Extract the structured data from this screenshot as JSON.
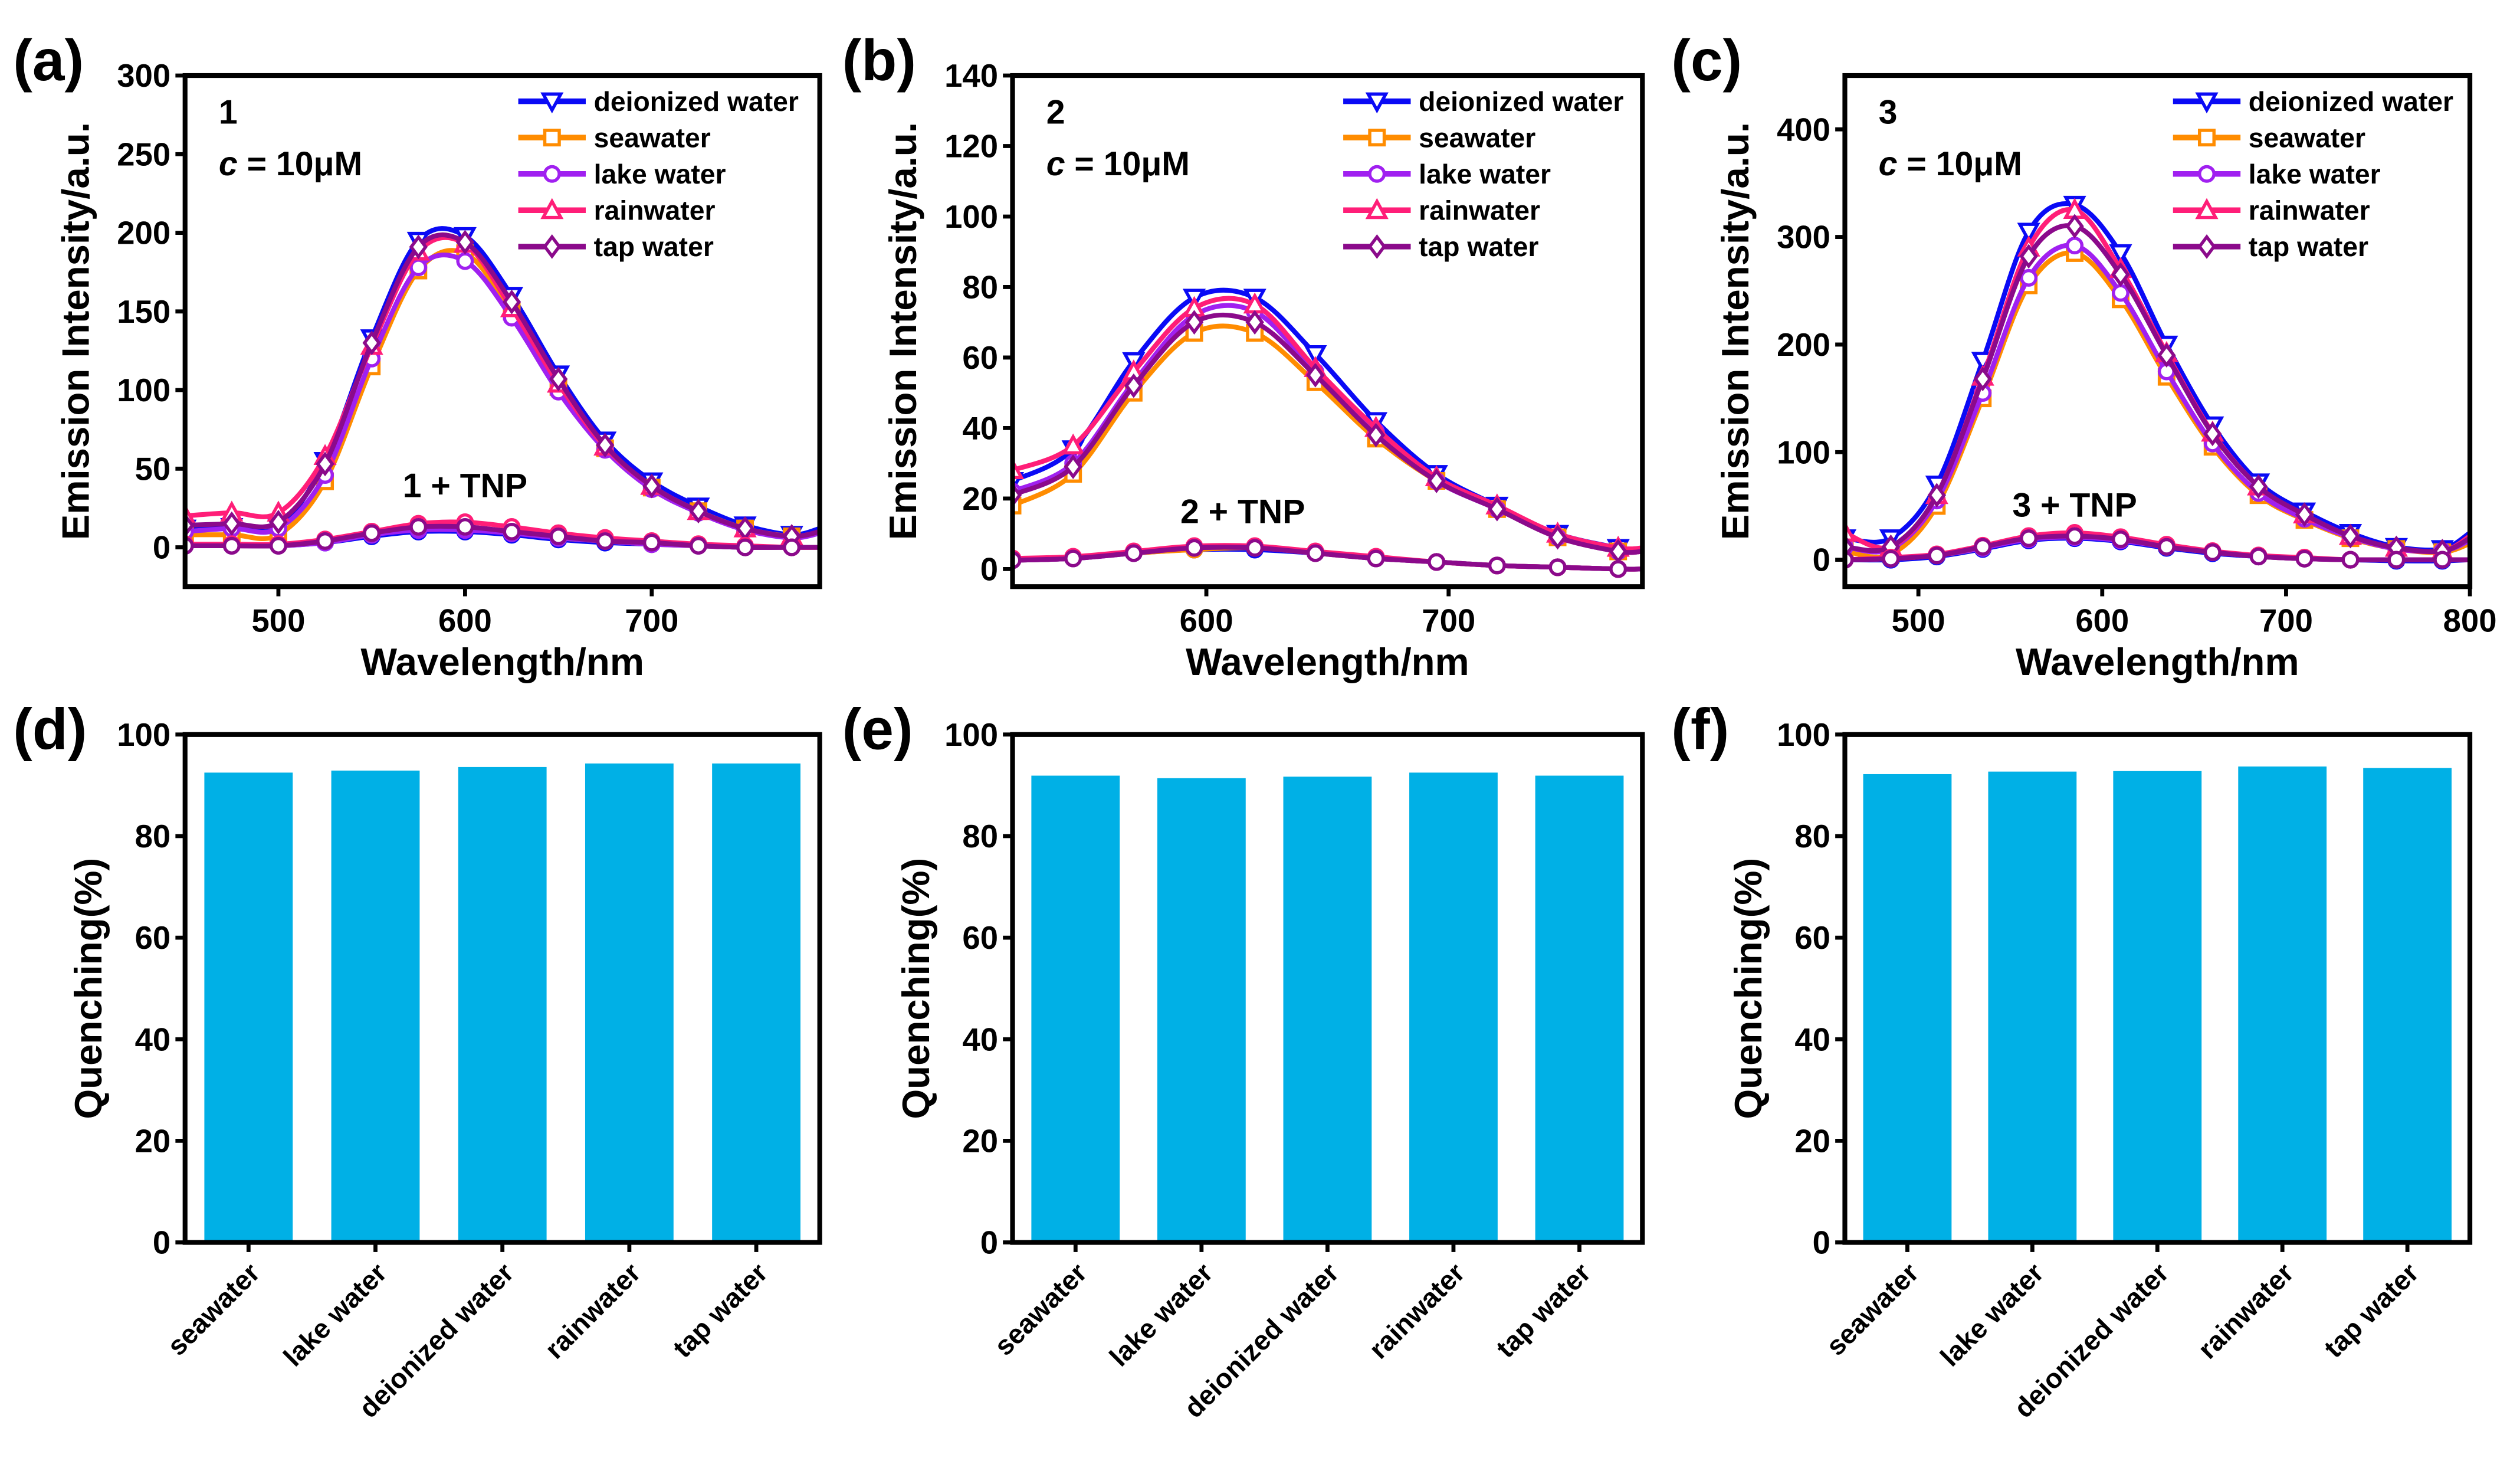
{
  "panel_labels": [
    "(a)",
    "(b)",
    "(c)",
    "(d)",
    "(e)",
    "(f)"
  ],
  "colors": {
    "deionized water": "#0A0AF5",
    "seawater": "#FF8C00",
    "lake water": "#A020F0",
    "rainwater": "#FF1E78",
    "tap water": "#8B0A8B",
    "bar": "#00B0E6"
  },
  "chart_data": [
    {
      "type": "line",
      "panel": "(a)",
      "xlabel": "Wavelength/nm",
      "ylabel": "Emission Intensity/a.u.",
      "xlim": [
        450,
        790
      ],
      "ylim": [
        -25,
        300
      ],
      "xticks": [
        500,
        600,
        700
      ],
      "yticks": [
        0,
        50,
        100,
        150,
        200,
        250,
        300
      ],
      "compound": "1",
      "concentration": {
        "symbol": "c",
        "value": " = 10μM"
      },
      "annotation": "1 + TNP",
      "legend_position": "top-right",
      "grid": false,
      "x": [
        450,
        475,
        500,
        525,
        550,
        575,
        600,
        625,
        650,
        675,
        700,
        725,
        750,
        775,
        790
      ],
      "series": [
        {
          "name": "deionized water",
          "marker": "triangle-down",
          "values": [
            12,
            13,
            13,
            55,
            133,
            195,
            198,
            160,
            110,
            68,
            42,
            26,
            14,
            8,
            12
          ]
        },
        {
          "name": "seawater",
          "marker": "square",
          "values": [
            8,
            8,
            8,
            42,
            115,
            176,
            187,
            150,
            102,
            63,
            38,
            23,
            12,
            7,
            9
          ]
        },
        {
          "name": "lake water",
          "marker": "circle",
          "values": [
            10,
            12,
            12,
            46,
            120,
            178,
            182,
            146,
            99,
            62,
            37,
            22,
            11,
            6,
            9
          ]
        },
        {
          "name": "rainwater",
          "marker": "triangle-up",
          "values": [
            20,
            22,
            22,
            58,
            128,
            188,
            193,
            152,
            104,
            64,
            39,
            23,
            12,
            7,
            10
          ]
        },
        {
          "name": "tap water",
          "marker": "diamond",
          "values": [
            14,
            15,
            16,
            53,
            130,
            191,
            194,
            156,
            107,
            65,
            39,
            23,
            12,
            7,
            10
          ]
        }
      ],
      "tnp_series": [
        {
          "name": "deionized water",
          "values": [
            1,
            1,
            1,
            3,
            7,
            10,
            10,
            8,
            5,
            3,
            2,
            1,
            0,
            0,
            0
          ]
        },
        {
          "name": "seawater",
          "values": [
            1,
            1,
            1,
            4,
            8,
            12,
            12,
            10,
            6,
            4,
            2,
            1,
            0,
            0,
            0
          ]
        },
        {
          "name": "lake water",
          "values": [
            1,
            1,
            1,
            3,
            8,
            11,
            11,
            9,
            6,
            4,
            2,
            1,
            0,
            0,
            0
          ]
        },
        {
          "name": "rainwater",
          "values": [
            2,
            2,
            2,
            5,
            10,
            15,
            16,
            13,
            9,
            6,
            4,
            2,
            1,
            0,
            0
          ]
        },
        {
          "name": "tap water",
          "values": [
            1,
            1,
            1,
            4,
            9,
            13,
            13,
            10,
            7,
            4,
            3,
            1,
            0,
            0,
            0
          ]
        }
      ]
    },
    {
      "type": "line",
      "panel": "(b)",
      "xlabel": "Wavelength/nm",
      "ylabel": "Emission Intensity/a.u.",
      "xlim": [
        520,
        780
      ],
      "ylim": [
        -5,
        140
      ],
      "xticks": [
        600,
        700
      ],
      "yticks": [
        0,
        20,
        40,
        60,
        80,
        100,
        120,
        140
      ],
      "compound": "2",
      "concentration": {
        "symbol": "c",
        "value": " = 10μM"
      },
      "annotation": "2 + TNP",
      "legend_position": "top-right",
      "grid": false,
      "x": [
        520,
        545,
        570,
        595,
        620,
        645,
        670,
        695,
        720,
        745,
        770,
        780
      ],
      "series": [
        {
          "name": "deionized water",
          "marker": "triangle-down",
          "values": [
            25,
            34,
            59,
            77,
            77,
            61,
            42,
            27,
            18,
            10,
            6,
            5
          ]
        },
        {
          "name": "seawater",
          "marker": "square",
          "values": [
            18,
            27,
            50,
            67,
            67,
            53,
            37,
            25,
            17,
            9,
            5,
            5
          ]
        },
        {
          "name": "lake water",
          "marker": "circle",
          "values": [
            22,
            30,
            53,
            72,
            73,
            56,
            39,
            25,
            17,
            9,
            5,
            5
          ]
        },
        {
          "name": "rainwater",
          "marker": "triangle-up",
          "values": [
            28,
            35,
            56,
            74,
            75,
            57,
            40,
            26,
            18,
            10,
            6,
            6
          ]
        },
        {
          "name": "tap water",
          "marker": "diamond",
          "values": [
            21,
            29,
            52,
            70,
            70,
            55,
            38,
            25,
            17,
            9,
            5,
            5
          ]
        }
      ],
      "tnp_series": [
        {
          "name": "deionized water",
          "values": [
            2.5,
            3,
            4.5,
            5.5,
            5.5,
            4.5,
            3,
            2,
            1,
            0.5,
            0,
            0
          ]
        },
        {
          "name": "seawater",
          "values": [
            2.5,
            3,
            4.5,
            5.5,
            6,
            4.5,
            3,
            2,
            1,
            0.5,
            0,
            0
          ]
        },
        {
          "name": "lake water",
          "values": [
            2.5,
            3,
            4.5,
            6,
            6,
            4.5,
            3,
            2,
            1,
            0.5,
            0,
            0
          ]
        },
        {
          "name": "rainwater",
          "values": [
            3,
            3.5,
            5,
            6.5,
            6.5,
            5,
            3.5,
            2,
            1,
            0.5,
            0,
            0
          ]
        },
        {
          "name": "tap water",
          "values": [
            2.5,
            3,
            4.5,
            6,
            6,
            4.5,
            3,
            2,
            1,
            0.5,
            0,
            0
          ]
        }
      ]
    },
    {
      "type": "line",
      "panel": "(c)",
      "xlabel": "Wavelength/nm",
      "ylabel": "Emission Intensity/a.u.",
      "xlim": [
        460,
        800
      ],
      "ylim": [
        -25,
        450
      ],
      "xticks": [
        500,
        600,
        700,
        800
      ],
      "yticks": [
        0,
        100,
        200,
        300,
        400
      ],
      "compound": "3",
      "concentration": {
        "symbol": "c",
        "value": " = 10μM"
      },
      "annotation": "3 + TNP",
      "legend_position": "top-right",
      "grid": false,
      "x": [
        460,
        485,
        510,
        535,
        560,
        585,
        610,
        635,
        660,
        685,
        710,
        735,
        760,
        785,
        800
      ],
      "series": [
        {
          "name": "deionized water",
          "marker": "triangle-down",
          "values": [
            20,
            20,
            70,
            185,
            305,
            330,
            285,
            200,
            125,
            72,
            45,
            25,
            12,
            10,
            25
          ]
        },
        {
          "name": "seawater",
          "marker": "square",
          "values": [
            8,
            5,
            50,
            150,
            255,
            285,
            242,
            170,
            105,
            60,
            37,
            20,
            10,
            7,
            15
          ]
        },
        {
          "name": "lake water",
          "marker": "circle",
          "values": [
            12,
            10,
            55,
            155,
            262,
            292,
            248,
            175,
            108,
            62,
            38,
            21,
            10,
            8,
            18
          ]
        },
        {
          "name": "rainwater",
          "marker": "triangle-up",
          "values": [
            25,
            12,
            60,
            170,
            290,
            325,
            270,
            192,
            118,
            68,
            42,
            22,
            11,
            8,
            22
          ]
        },
        {
          "name": "tap water",
          "marker": "diamond",
          "values": [
            12,
            12,
            60,
            168,
            282,
            310,
            265,
            190,
            117,
            68,
            42,
            22,
            11,
            8,
            20
          ]
        }
      ],
      "tnp_series": [
        {
          "name": "deionized water",
          "values": [
            0,
            0,
            3,
            10,
            18,
            20,
            17,
            11,
            6,
            3,
            1,
            0,
            -1,
            -1,
            0
          ]
        },
        {
          "name": "seawater",
          "values": [
            0,
            1,
            4,
            11,
            20,
            22,
            19,
            12,
            7,
            3,
            1,
            0,
            0,
            0,
            0
          ]
        },
        {
          "name": "lake water",
          "values": [
            0,
            1,
            4,
            11,
            19,
            21,
            18,
            12,
            7,
            3,
            1,
            0,
            0,
            0,
            0
          ]
        },
        {
          "name": "rainwater",
          "values": [
            0,
            2,
            5,
            13,
            22,
            25,
            21,
            14,
            8,
            4,
            2,
            0,
            0,
            0,
            0
          ]
        },
        {
          "name": "tap water",
          "values": [
            0,
            1,
            4,
            12,
            20,
            22,
            19,
            12,
            7,
            3,
            1,
            0,
            0,
            0,
            0
          ]
        }
      ]
    },
    {
      "type": "bar",
      "panel": "(d)",
      "xlabel": "",
      "ylabel": "Quenching(%)",
      "ylim": [
        0,
        100
      ],
      "yticks": [
        0,
        20,
        40,
        60,
        80,
        100
      ],
      "grid": false,
      "categories": [
        "seawater",
        "lake water",
        "deionized water",
        "rainwater",
        "tap water"
      ],
      "values": [
        92.5,
        92.9,
        93.6,
        94.3,
        94.3
      ]
    },
    {
      "type": "bar",
      "panel": "(e)",
      "xlabel": "",
      "ylabel": "Quenching(%)",
      "ylim": [
        0,
        100
      ],
      "yticks": [
        0,
        20,
        40,
        60,
        80,
        100
      ],
      "grid": false,
      "categories": [
        "seawater",
        "lake water",
        "deionized water",
        "rainwater",
        "tap water"
      ],
      "values": [
        91.9,
        91.4,
        91.7,
        92.5,
        91.9
      ]
    },
    {
      "type": "bar",
      "panel": "(f)",
      "xlabel": "",
      "ylabel": "Quenching(%)",
      "ylim": [
        0,
        100
      ],
      "yticks": [
        0,
        20,
        40,
        60,
        80,
        100
      ],
      "grid": false,
      "categories": [
        "seawater",
        "lake water",
        "deionized water",
        "rainwater",
        "tap water"
      ],
      "values": [
        92.2,
        92.7,
        92.8,
        93.7,
        93.4
      ]
    }
  ]
}
